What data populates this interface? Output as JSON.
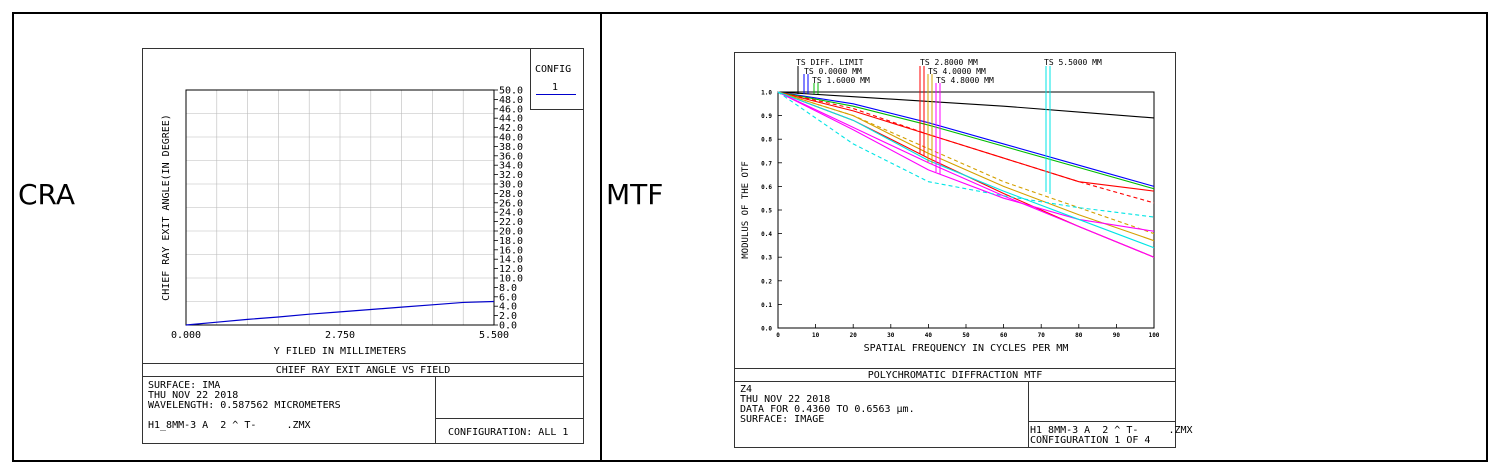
{
  "left_label": "CRA",
  "right_label": "MTF",
  "cra_panel": {
    "config_title": "CONFIG",
    "config_value": "1",
    "footer_title": "CHIEF RAY EXIT ANGLE VS FIELD",
    "info_lines": [
      "SURFACE: IMA",
      "THU NOV 22 2018",
      "WAVELENGTH: 0.587562 MICROMETERS"
    ],
    "file_name": "H1_8MM-3 A  2 ^ T-     .ZMX",
    "configuration": "CONFIGURATION: ALL 1"
  },
  "mtf_panel": {
    "footer_title": "POLYCHROMATIC DIFFRACTION MTF",
    "info_lines": [
      "Z4",
      "THU NOV 22 2018",
      "DATA FOR 0.4360 TO 0.6563 µm.",
      "SURFACE: IMAGE"
    ],
    "file_name": "H1_8MM-3 A  2 ^ T-     .ZMX",
    "configuration": "CONFIGURATION 1 OF 4"
  },
  "chart_data": [
    {
      "type": "line",
      "xlabel": "Y FILED IN MILLIMETERS",
      "ylabel": "CHIEF RAY EXIT ANGLE(IN DEGREE)",
      "xlim": [
        0,
        5.5
      ],
      "ylim": [
        0,
        50
      ],
      "x_tick_labels": [
        "0.000",
        "2.750",
        "5.500"
      ],
      "y_tick_labels": [
        "0.0",
        "2.0",
        "4.0",
        "6.0",
        "8.0",
        "10.0",
        "12.0",
        "14.0",
        "16.0",
        "18.0",
        "20.0",
        "22.0",
        "24.0",
        "26.0",
        "28.0",
        "30.0",
        "32.0",
        "34.0",
        "36.0",
        "38.0",
        "40.0",
        "42.0",
        "44.0",
        "46.0",
        "48.0",
        "50.0"
      ],
      "grid": true,
      "series": [
        {
          "color": "#0000cc",
          "x": [
            0,
            0.55,
            1.1,
            1.65,
            2.2,
            2.75,
            3.3,
            3.85,
            4.4,
            4.95,
            5.5
          ],
          "y": [
            0,
            0.6,
            1.2,
            1.7,
            2.3,
            2.8,
            3.3,
            3.8,
            4.3,
            4.8,
            5.0
          ]
        }
      ]
    },
    {
      "type": "line",
      "xlabel": "SPATIAL FREQUENCY IN CYCLES PER MM",
      "ylabel": "MODULUS OF THE OTF",
      "xlim": [
        0,
        100
      ],
      "ylim": [
        0,
        1
      ],
      "x_tick_labels": [
        "0",
        "10",
        "20",
        "30",
        "40",
        "50",
        "60",
        "70",
        "80",
        "90",
        "100"
      ],
      "y_tick_labels": [
        "0.0",
        "0.1",
        "0.2",
        "0.3",
        "0.4",
        "0.5",
        "0.6",
        "0.7",
        "0.8",
        "0.9",
        "1.0"
      ],
      "grid": false,
      "legend": [
        {
          "label": "TS DIFF. LIMIT",
          "color": "#000000"
        },
        {
          "label": "TS 0.0000 MM",
          "color": "#0000ff"
        },
        {
          "label": "TS 1.6000 MM",
          "color": "#00bb00"
        },
        {
          "label": "TS 2.8000 MM",
          "color": "#ff0000"
        },
        {
          "label": "TS 4.0000 MM",
          "color": "#d4a000"
        },
        {
          "label": "TS 4.8000 MM",
          "color": "#ff00ff"
        },
        {
          "label": "TS 5.5000 MM",
          "color": "#00e5e5"
        }
      ],
      "series": [
        {
          "color": "#000000",
          "dash": false,
          "x": [
            0,
            20,
            40,
            60,
            80,
            100
          ],
          "y": [
            1.0,
            0.98,
            0.96,
            0.94,
            0.915,
            0.89
          ]
        },
        {
          "color": "#0000ff",
          "dash": false,
          "x": [
            0,
            20,
            40,
            60,
            80,
            100
          ],
          "y": [
            1.0,
            0.95,
            0.87,
            0.78,
            0.69,
            0.6
          ]
        },
        {
          "color": "#00bb00",
          "dash": false,
          "x": [
            0,
            20,
            40,
            60,
            80,
            100
          ],
          "y": [
            1.0,
            0.94,
            0.86,
            0.77,
            0.68,
            0.59
          ]
        },
        {
          "color": "#ff0000",
          "dash": false,
          "x": [
            0,
            20,
            40,
            60,
            80,
            100
          ],
          "y": [
            1.0,
            0.92,
            0.82,
            0.72,
            0.62,
            0.58
          ]
        },
        {
          "color": "#ff0000",
          "dash": true,
          "x": [
            0,
            20,
            40,
            60,
            80,
            100
          ],
          "y": [
            1.0,
            0.93,
            0.82,
            0.72,
            0.62,
            0.53
          ]
        },
        {
          "color": "#ff0000",
          "dash": false,
          "x": [
            0,
            20,
            40,
            60,
            80,
            100
          ],
          "y": [
            1.0,
            0.88,
            0.72,
            0.57,
            0.43,
            0.3
          ]
        },
        {
          "color": "#d4a000",
          "dash": false,
          "x": [
            0,
            20,
            40,
            60,
            80,
            100
          ],
          "y": [
            1.0,
            0.9,
            0.74,
            0.6,
            0.48,
            0.37
          ]
        },
        {
          "color": "#d4a000",
          "dash": true,
          "x": [
            0,
            20,
            40,
            60,
            80,
            100
          ],
          "y": [
            1.0,
            0.9,
            0.76,
            0.62,
            0.51,
            0.4
          ]
        },
        {
          "color": "#ff00ff",
          "dash": false,
          "x": [
            0,
            20,
            40,
            60,
            80,
            100
          ],
          "y": [
            1.0,
            0.84,
            0.67,
            0.55,
            0.46,
            0.41
          ]
        },
        {
          "color": "#ff00ff",
          "dash": false,
          "x": [
            0,
            20,
            40,
            60,
            80,
            100
          ],
          "y": [
            1.0,
            0.85,
            0.7,
            0.56,
            0.43,
            0.3
          ]
        },
        {
          "color": "#00e5e5",
          "dash": false,
          "x": [
            0,
            20,
            40,
            60,
            80,
            100
          ],
          "y": [
            1.0,
            0.88,
            0.71,
            0.58,
            0.46,
            0.34
          ]
        },
        {
          "color": "#00e5e5",
          "dash": true,
          "x": [
            0,
            20,
            40,
            60,
            80,
            100
          ],
          "y": [
            1.0,
            0.78,
            0.62,
            0.56,
            0.51,
            0.47
          ]
        }
      ]
    }
  ]
}
